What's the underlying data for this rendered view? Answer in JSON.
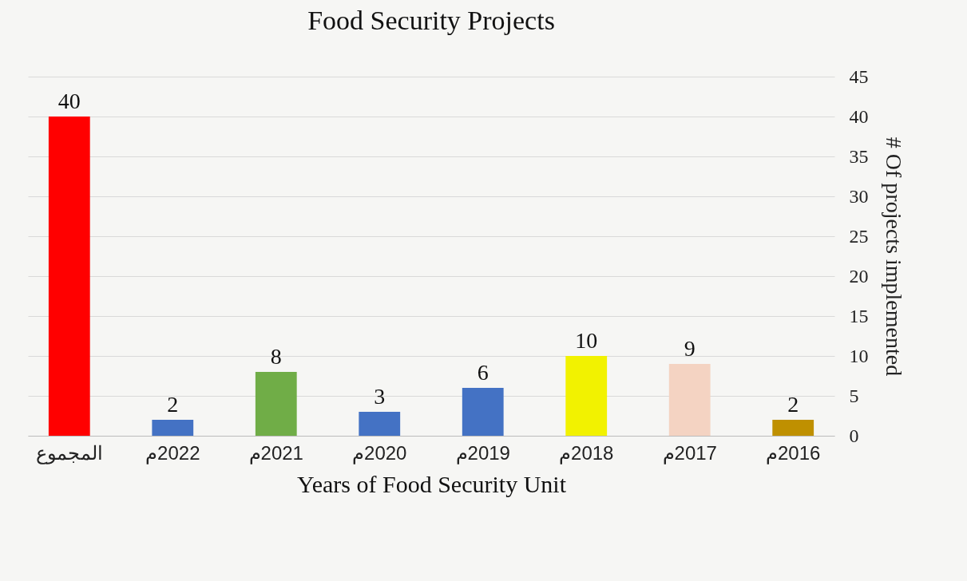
{
  "chart_data": {
    "type": "bar",
    "title": "Food Security Projects",
    "xlabel": "Years of Food Security Unit",
    "ylabel": "# Of projects implemented",
    "categories": [
      "المجموع",
      "2022م",
      "2021م",
      "2020م",
      "2019م",
      "2018م",
      "2017م",
      "2016م"
    ],
    "values": [
      40,
      2,
      8,
      3,
      6,
      10,
      9,
      2
    ],
    "colors": [
      "#ff0000",
      "#4472c4",
      "#70ad47",
      "#4472c4",
      "#4472c4",
      "#f2f200",
      "#f4d3c2",
      "#bf9000"
    ],
    "ylim": [
      0,
      45
    ],
    "yticks": [
      0,
      5,
      10,
      15,
      20,
      25,
      30,
      35,
      40,
      45
    ],
    "grid": true,
    "data_labels": true
  }
}
